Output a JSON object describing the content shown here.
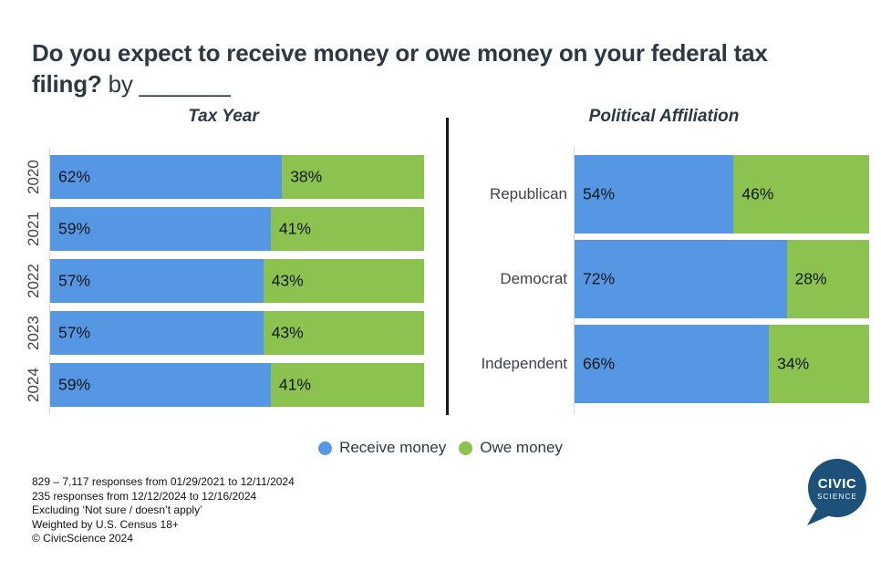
{
  "title": {
    "question": "Do you expect to receive money or owe money on your federal tax filing?",
    "suffix": " by _______"
  },
  "colors": {
    "receive_money": "#5697e4",
    "owe_money": "#8cc24f",
    "heading_text": "#2c3844",
    "axis_line": "#d7d7d7",
    "divider": "#17181a",
    "logo_blue": "#1d5179"
  },
  "legend": {
    "items": [
      {
        "label": "Receive money",
        "color": "#5697e4"
      },
      {
        "label": "Owe money",
        "color": "#8cc24f"
      }
    ]
  },
  "chart_data": [
    {
      "type": "bar",
      "orientation": "horizontal",
      "stacked": true,
      "title": "Tax Year",
      "categories": [
        "2020",
        "2021",
        "2022",
        "2023",
        "2024"
      ],
      "series": [
        {
          "name": "Receive money",
          "values": [
            62,
            59,
            57,
            57,
            59
          ]
        },
        {
          "name": "Owe money",
          "values": [
            38,
            41,
            43,
            43,
            41
          ]
        }
      ],
      "value_suffix": "%",
      "xlim": [
        0,
        100
      ],
      "category_label_style": "rotated-90"
    },
    {
      "type": "bar",
      "orientation": "horizontal",
      "stacked": true,
      "title": "Political Affiliation",
      "categories": [
        "Republican",
        "Democrat",
        "Independent"
      ],
      "series": [
        {
          "name": "Receive money",
          "values": [
            54,
            72,
            66
          ]
        },
        {
          "name": "Owe money",
          "values": [
            46,
            28,
            34
          ]
        }
      ],
      "value_suffix": "%",
      "xlim": [
        0,
        100
      ],
      "category_label_style": "horizontal"
    }
  ],
  "footnotes": [
    "829 – 7,117 responses from 01/29/2021 to 12/11/2024",
    "235 responses from 12/12/2024 to 12/16/2024",
    "Excluding ‘Not sure / doesn’t apply’",
    "Weighted by U.S. Census 18+",
    "© CivicScience 2024"
  ],
  "logo": {
    "line1": "CIVIC",
    "line2": "SCIENCE"
  }
}
